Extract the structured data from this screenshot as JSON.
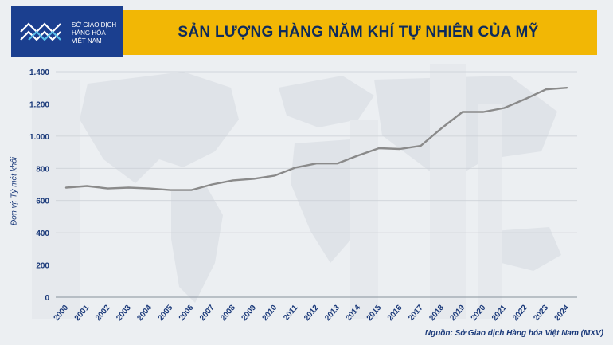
{
  "header": {
    "title": "SẢN LƯỢNG HÀNG NĂM KHÍ TỰ NHIÊN CỦA MỸ"
  },
  "logo": {
    "line1": "SỞ GIAO DỊCH",
    "line2": "HÀNG HÓA",
    "line3": "VIỆT NAM"
  },
  "source": "Nguồn: Sở Giao dịch Hàng hóa Việt Nam (MXV)",
  "colors": {
    "header_bg": "#f2b705",
    "title_text": "#0e2b5c",
    "logo_bg": "#1b3f8f",
    "line": "#8a8a8a",
    "axis_text": "#1b3a7a"
  },
  "chart_data": {
    "type": "line",
    "title": "SẢN LƯỢNG HÀNG NĂM KHÍ TỰ NHIÊN CỦA MỸ",
    "ylabel": "Đơn vị: Tỷ mét khối",
    "xlabel": "",
    "ylim": [
      0,
      1400
    ],
    "yticks": [
      0,
      200,
      400,
      600,
      800,
      1000,
      1200,
      1400
    ],
    "ytick_labels": [
      "0",
      "200",
      "400",
      "600",
      "800",
      "1.000",
      "1.200",
      "1.400"
    ],
    "grid": true,
    "categories": [
      "2000",
      "2001",
      "2002",
      "2003",
      "2004",
      "2005",
      "2006",
      "2007",
      "2008",
      "2009",
      "2010",
      "2011",
      "2012",
      "2013",
      "2014",
      "2015",
      "2016",
      "2017",
      "2018",
      "2019",
      "2020",
      "2021",
      "2022",
      "2023",
      "2024"
    ],
    "series": [
      {
        "values": [
          680,
          690,
          675,
          680,
          675,
          665,
          665,
          700,
          725,
          735,
          755,
          805,
          830,
          830,
          880,
          925,
          920,
          940,
          1050,
          1150,
          1150,
          1175,
          1230,
          1290,
          1300
        ]
      }
    ]
  }
}
